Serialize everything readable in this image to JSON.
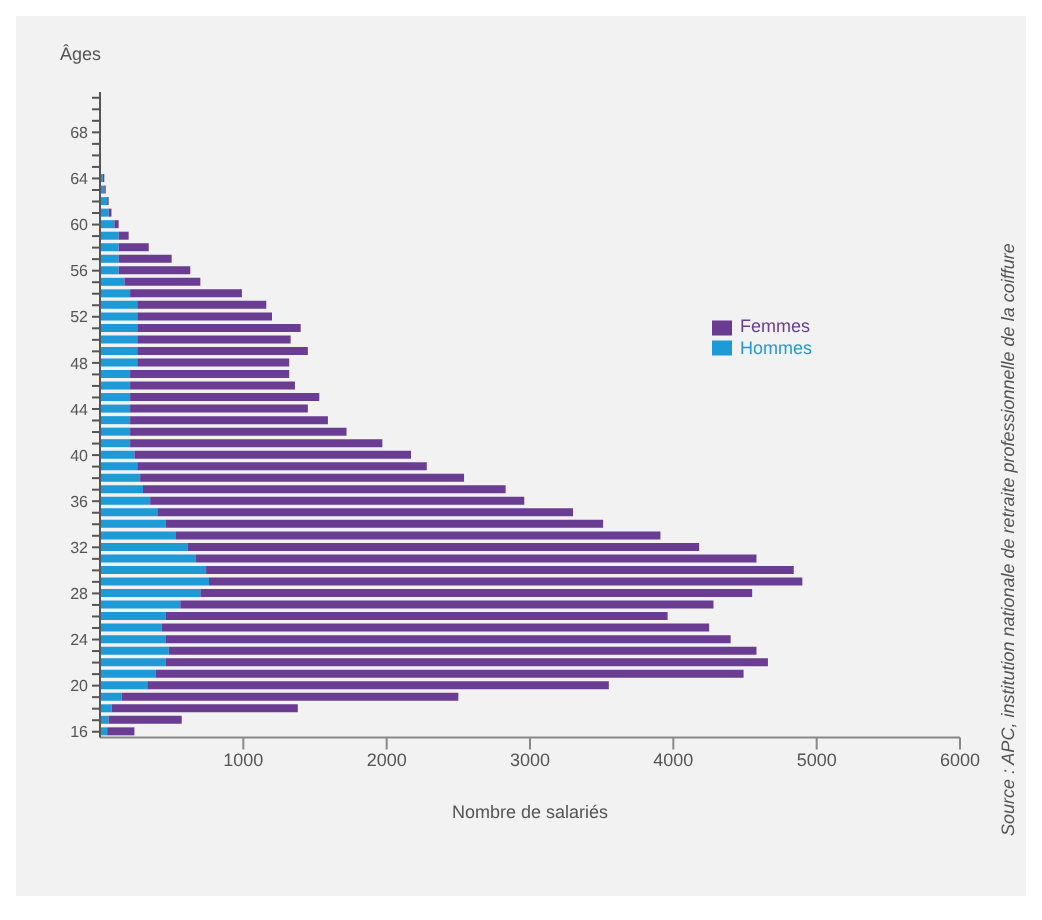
{
  "chart_data": {
    "type": "bar",
    "orientation": "horizontal",
    "stacked": true,
    "xlabel": "Nombre de salariés",
    "ylabel": "Âges",
    "annotations": [
      "Source : APC, institution nationale de retraite professionnelle de la coiffure"
    ],
    "categories": [
      null,
      null,
      null,
      "68",
      null,
      null,
      null,
      "64",
      null,
      null,
      null,
      "60",
      null,
      null,
      null,
      "56",
      null,
      null,
      null,
      "52",
      null,
      null,
      null,
      "48",
      null,
      null,
      null,
      "44",
      null,
      null,
      null,
      "40",
      null,
      null,
      null,
      "36",
      null,
      null,
      null,
      "32",
      null,
      null,
      null,
      "28",
      null,
      null,
      null,
      "24",
      null,
      null,
      null,
      "20",
      null,
      null,
      null,
      "16"
    ],
    "series": [
      {
        "name": "Hommes",
        "color": "#1e9bd7",
        "values": [
          null,
          null,
          null,
          null,
          null,
          null,
          null,
          20,
          30,
          50,
          60,
          100,
          130,
          130,
          130,
          130,
          170,
          210,
          260,
          260,
          260,
          260,
          260,
          260,
          210,
          210,
          210,
          210,
          210,
          210,
          210,
          240,
          260,
          280,
          300,
          350,
          400,
          460,
          530,
          610,
          670,
          740,
          760,
          700,
          560,
          460,
          430,
          460,
          480,
          460,
          390,
          330,
          150,
          80,
          60,
          50
        ]
      },
      {
        "name": "Femmes",
        "color": "#6a3d92",
        "values": [
          null,
          null,
          null,
          null,
          null,
          null,
          null,
          10,
          10,
          10,
          20,
          30,
          70,
          210,
          370,
          500,
          530,
          780,
          900,
          940,
          1140,
          1070,
          1190,
          1060,
          1110,
          1150,
          1320,
          1240,
          1380,
          1510,
          1760,
          1930,
          2020,
          2260,
          2530,
          2610,
          2900,
          3050,
          3380,
          3570,
          3910,
          4100,
          4140,
          3850,
          3720,
          3500,
          3820,
          3940,
          4100,
          4200,
          4100,
          3220,
          2350,
          1300,
          510,
          190
        ]
      }
    ],
    "xlim": [
      0,
      6000
    ],
    "xticks": [
      1000,
      2000,
      3000,
      4000,
      5000,
      6000
    ],
    "grid": false,
    "legend": "right"
  }
}
